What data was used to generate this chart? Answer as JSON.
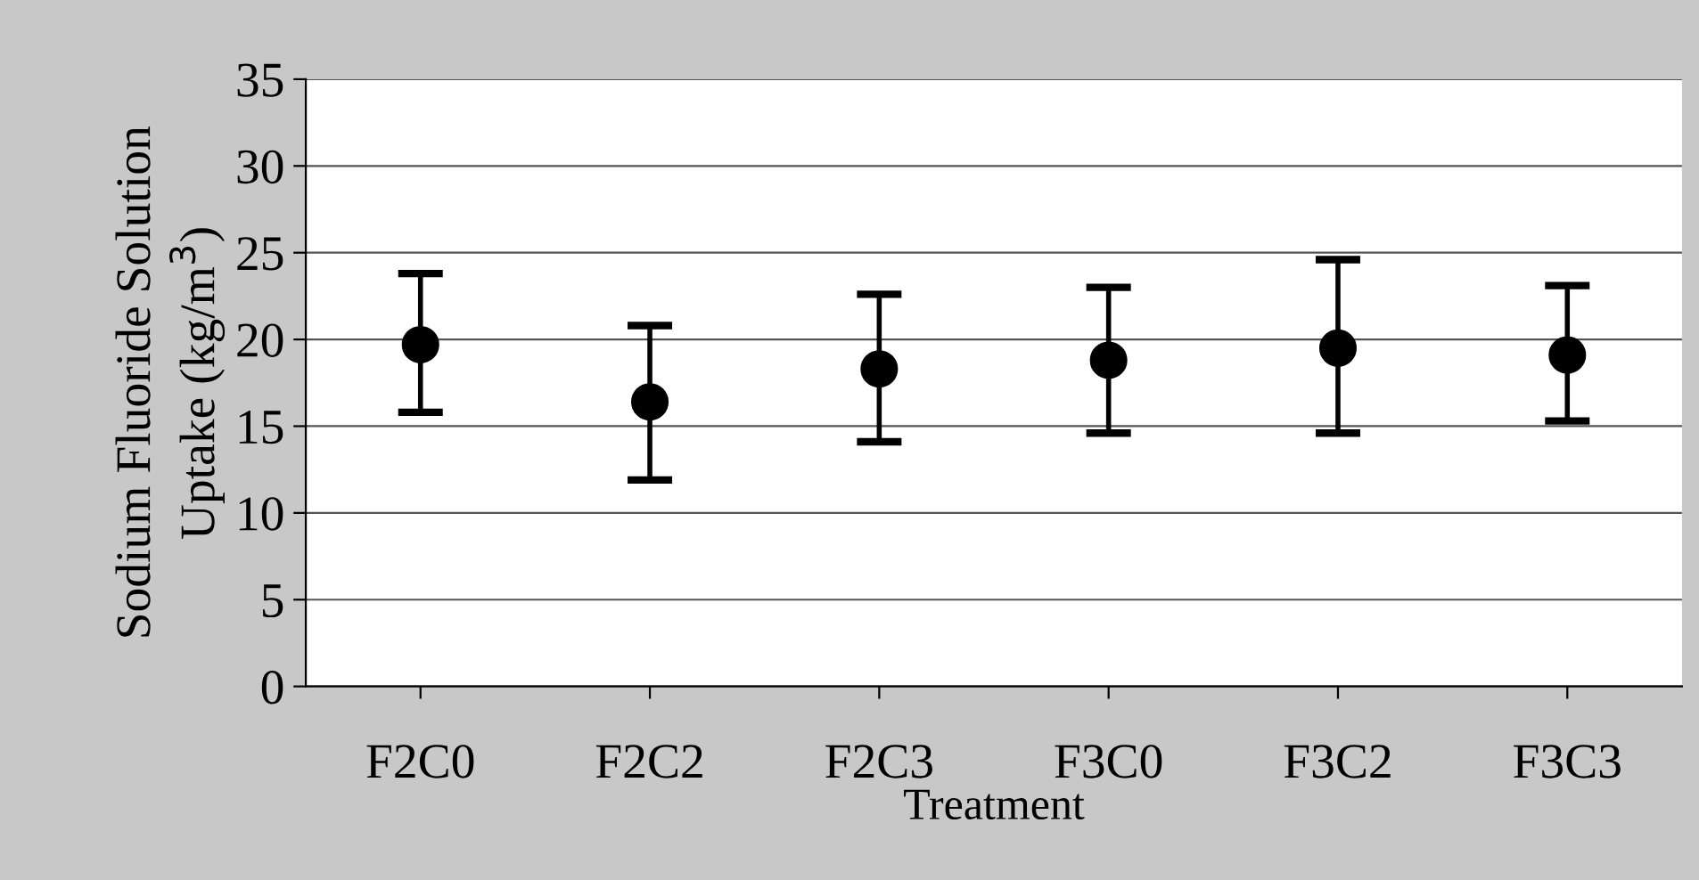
{
  "chart_data": {
    "type": "scatter",
    "xlabel": "Treatment",
    "ylabel": "Sodium Fluoride Solution\nUptake (kg/m$^{3}$)",
    "categories": [
      "F2C0",
      "F2C2",
      "F2C3",
      "F3C0",
      "F3C2",
      "F3C3"
    ],
    "values": [
      19.7,
      16.4,
      18.3,
      18.8,
      19.5,
      19.1
    ],
    "errors": [
      [
        15.8,
        23.8
      ],
      [
        11.9,
        20.8
      ],
      [
        14.1,
        22.6
      ],
      [
        14.6,
        23.0
      ],
      [
        14.6,
        24.6
      ],
      [
        15.3,
        23.1
      ]
    ],
    "color": "#000000",
    "marker": "circle",
    "ylim": [
      0,
      35
    ],
    "yticks": [
      0,
      5,
      10,
      15,
      20,
      25,
      30,
      35
    ],
    "grid": "y",
    "legend": false
  }
}
